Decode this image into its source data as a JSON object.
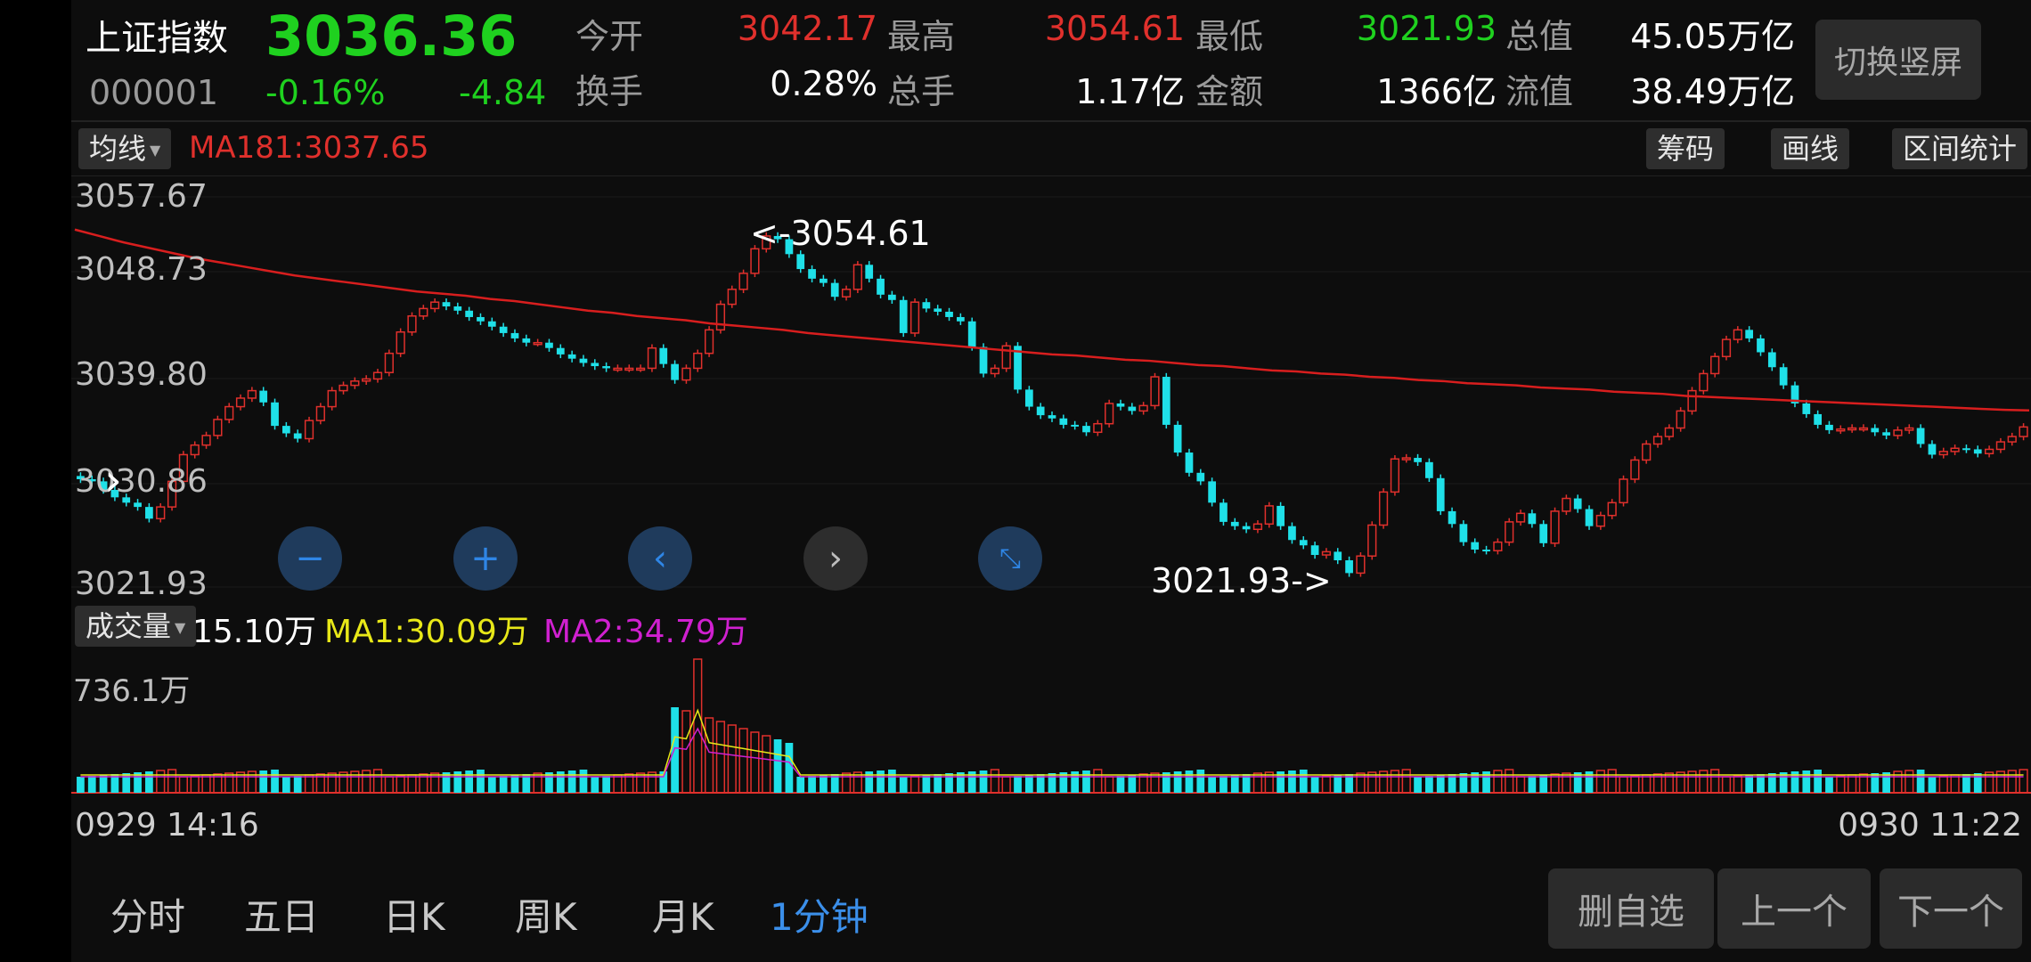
{
  "header": {
    "name": "上证指数",
    "price": "3036.36",
    "code": "000001",
    "change_pct": "-0.16%",
    "change": "-4.84",
    "stats": [
      {
        "label": "今开",
        "value": "3042.17"
      },
      {
        "label": "最高",
        "value": "3054.61"
      },
      {
        "label": "最低",
        "value": "3021.93"
      },
      {
        "label": "总值",
        "value": "45.05万亿"
      },
      {
        "label": "换手",
        "value": "0.28%"
      },
      {
        "label": "总手",
        "value": "1.17亿"
      },
      {
        "label": "金额",
        "value": "1366亿"
      },
      {
        "label": "流值",
        "value": "38.49万亿"
      }
    ],
    "switch_button": "切换竖屏"
  },
  "toolbar": {
    "indicator": "均线",
    "ma_label": "MA181:3037.65",
    "buttons": [
      "筹码",
      "画线",
      "区间统计"
    ]
  },
  "price_chart": {
    "y_ticks": [
      "3057.67",
      "3048.73",
      "3039.80",
      "3030.86",
      "3021.93"
    ],
    "high_label": "<-3054.61",
    "low_label": "3021.93->"
  },
  "volume": {
    "selector": "成交量",
    "current": "15.10万",
    "ma1": "MA1:30.09万",
    "ma2": "MA2:34.79万",
    "max_label": "736.1万"
  },
  "dates": {
    "start": "0929 14:16",
    "end": "0930 11:22"
  },
  "tabs": [
    "分时",
    "五日",
    "日K",
    "周K",
    "月K",
    "1分钟"
  ],
  "bottom_buttons": [
    "删自选",
    "上一个",
    "下一个"
  ],
  "colors": {
    "up": "#e0302c",
    "down": "#1fe0e8",
    "ma": "#d81e1e",
    "ma1": "#e8e818",
    "ma2": "#d020d0"
  },
  "chart_data": {
    "type": "candlestick",
    "ylim": [
      3021.93,
      3057.67
    ],
    "closes": [
      3031.2,
      3031.0,
      3030.2,
      3029.5,
      3029.0,
      3028.6,
      3027.5,
      3028.6,
      3031.0,
      3033.5,
      3034.4,
      3035.3,
      3036.8,
      3038.0,
      3038.8,
      3039.5,
      3038.4,
      3036.2,
      3035.5,
      3035.0,
      3036.7,
      3038.0,
      3039.5,
      3040.0,
      3040.4,
      3040.6,
      3041.2,
      3043.0,
      3045.0,
      3046.5,
      3047.2,
      3047.8,
      3047.4,
      3047.0,
      3046.4,
      3046.0,
      3045.5,
      3044.9,
      3044.4,
      3044.0,
      3044.0,
      3043.5,
      3042.9,
      3042.5,
      3042.1,
      3041.8,
      3041.6,
      3041.6,
      3041.6,
      3041.6,
      3043.5,
      3042.0,
      3040.5,
      3041.6,
      3043.0,
      3045.2,
      3047.6,
      3049.0,
      3050.5,
      3052.8,
      3054.0,
      3053.7,
      3052.3,
      3050.9,
      3050.0,
      3049.6,
      3048.3,
      3049.0,
      3051.3,
      3050.0,
      3048.5,
      3048.0,
      3044.9,
      3047.8,
      3047.2,
      3046.9,
      3046.4,
      3046.0,
      3043.6,
      3041.1,
      3041.6,
      3043.7,
      3039.6,
      3038.0,
      3037.2,
      3036.9,
      3036.3,
      3036.2,
      3035.6,
      3036.4,
      3038.3,
      3038.0,
      3037.6,
      3038.1,
      3040.8,
      3036.3,
      3033.7,
      3031.8,
      3031.0,
      3029.0,
      3027.2,
      3026.8,
      3026.5,
      3027.0,
      3028.7,
      3026.8,
      3025.5,
      3025.0,
      3024.1,
      3024.4,
      3023.6,
      3022.4,
      3024.0,
      3026.9,
      3030.0,
      3033.1,
      3033.2,
      3032.8,
      3031.3,
      3028.2,
      3027.0,
      3025.3,
      3024.6,
      3024.5,
      3025.3,
      3027.2,
      3028.0,
      3027.0,
      3025.2,
      3028.2,
      3029.4,
      3028.4,
      3026.8,
      3027.8,
      3029.0,
      3031.2,
      3033.0,
      3034.5,
      3035.2,
      3036.0,
      3037.6,
      3039.5,
      3041.1,
      3042.7,
      3044.3,
      3045.2,
      3044.4,
      3043.1,
      3041.7,
      3040.0,
      3038.3,
      3037.3,
      3036.3,
      3035.8,
      3035.9,
      3036.0,
      3036.0,
      3035.6,
      3035.3,
      3035.8,
      3036.0,
      3034.5,
      3033.5,
      3033.8,
      3034.1,
      3034.0,
      3033.6,
      3034.0,
      3034.7,
      3035.2,
      3036.1
    ],
    "ma181": [
      3054.6,
      3054.0,
      3053.4,
      3052.9,
      3052.4,
      3051.9,
      3051.5,
      3051.1,
      3050.7,
      3050.3,
      3050.0,
      3049.7,
      3049.4,
      3049.1,
      3048.8,
      3048.6,
      3048.4,
      3048.1,
      3047.9,
      3047.6,
      3047.3,
      3047.0,
      3046.8,
      3046.5,
      3046.3,
      3046.1,
      3045.8,
      3045.6,
      3045.4,
      3045.2,
      3044.9,
      3044.7,
      3044.5,
      3044.3,
      3044.1,
      3043.9,
      3043.7,
      3043.5,
      3043.3,
      3043.1,
      3042.9,
      3042.8,
      3042.6,
      3042.4,
      3042.3,
      3042.1,
      3041.9,
      3041.8,
      3041.6,
      3041.4,
      3041.3,
      3041.1,
      3041.0,
      3040.8,
      3040.7,
      3040.5,
      3040.4,
      3040.2,
      3040.1,
      3040.0,
      3039.8,
      3039.7,
      3039.6,
      3039.4,
      3039.3,
      3039.2,
      3039.0,
      3038.9,
      3038.8,
      3038.7,
      3038.6,
      3038.5,
      3038.4,
      3038.3,
      3038.2,
      3038.1,
      3038.0,
      3037.9,
      3037.8,
      3037.7,
      3037.65
    ]
  }
}
